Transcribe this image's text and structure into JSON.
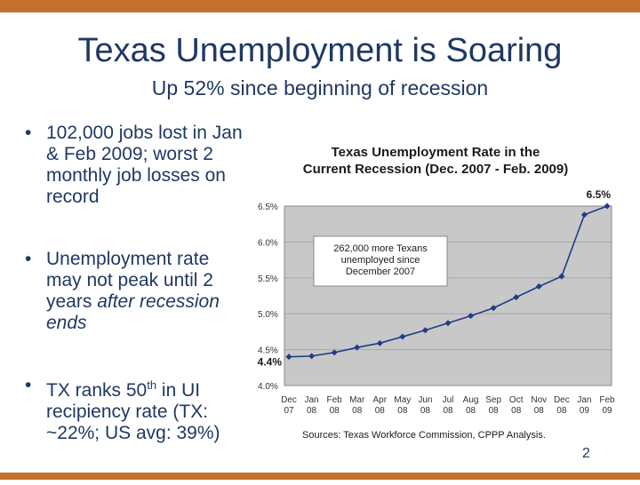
{
  "slide": {
    "title": "Texas Unemployment is Soaring",
    "subtitle": "Up 52% since beginning of recession",
    "page_number": "2",
    "bullets": [
      {
        "text": "102,000 jobs lost in Jan & Feb 2009; worst 2 monthly job losses on record"
      },
      {
        "text_before": "Unemployment rate may not peak until 2 years ",
        "text_italic": "after recession ends"
      },
      {
        "text_before": "TX ranks 50",
        "text_sup": "th",
        "text_after": " in UI recipiency rate (TX: ~22%; US avg: 39%)"
      }
    ],
    "source": "Sources: Texas Workforce Commission, CPPP Analysis."
  },
  "chart_data": {
    "type": "line",
    "title_line1": "Texas Unemployment Rate in the",
    "title_line2": "Current Recession (Dec. 2007 - Feb. 2009)",
    "categories": [
      [
        "Dec",
        "07"
      ],
      [
        "Jan",
        "08"
      ],
      [
        "Feb",
        "08"
      ],
      [
        "Mar",
        "08"
      ],
      [
        "Apr",
        "08"
      ],
      [
        "May",
        "08"
      ],
      [
        "Jun",
        "08"
      ],
      [
        "Jul",
        "08"
      ],
      [
        "Aug",
        "08"
      ],
      [
        "Sep",
        "08"
      ],
      [
        "Oct",
        "08"
      ],
      [
        "Nov",
        "08"
      ],
      [
        "Dec",
        "08"
      ],
      [
        "Jan",
        "09"
      ],
      [
        "Feb",
        "09"
      ]
    ],
    "values": [
      4.4,
      4.41,
      4.46,
      4.53,
      4.59,
      4.68,
      4.77,
      4.87,
      4.97,
      5.08,
      5.23,
      5.38,
      5.52,
      6.38,
      6.5
    ],
    "ylim": [
      4.0,
      6.5
    ],
    "yticks": [
      "4.0%",
      "4.5%",
      "5.0%",
      "5.5%",
      "6.0%",
      "6.5%"
    ],
    "grid": true,
    "line_color": "#1f3c88",
    "plot_bg": "#c8c8c8",
    "start_label": "4.4%",
    "end_label": "6.5%",
    "annotation": "262,000 more Texans unemployed since December 2007"
  }
}
